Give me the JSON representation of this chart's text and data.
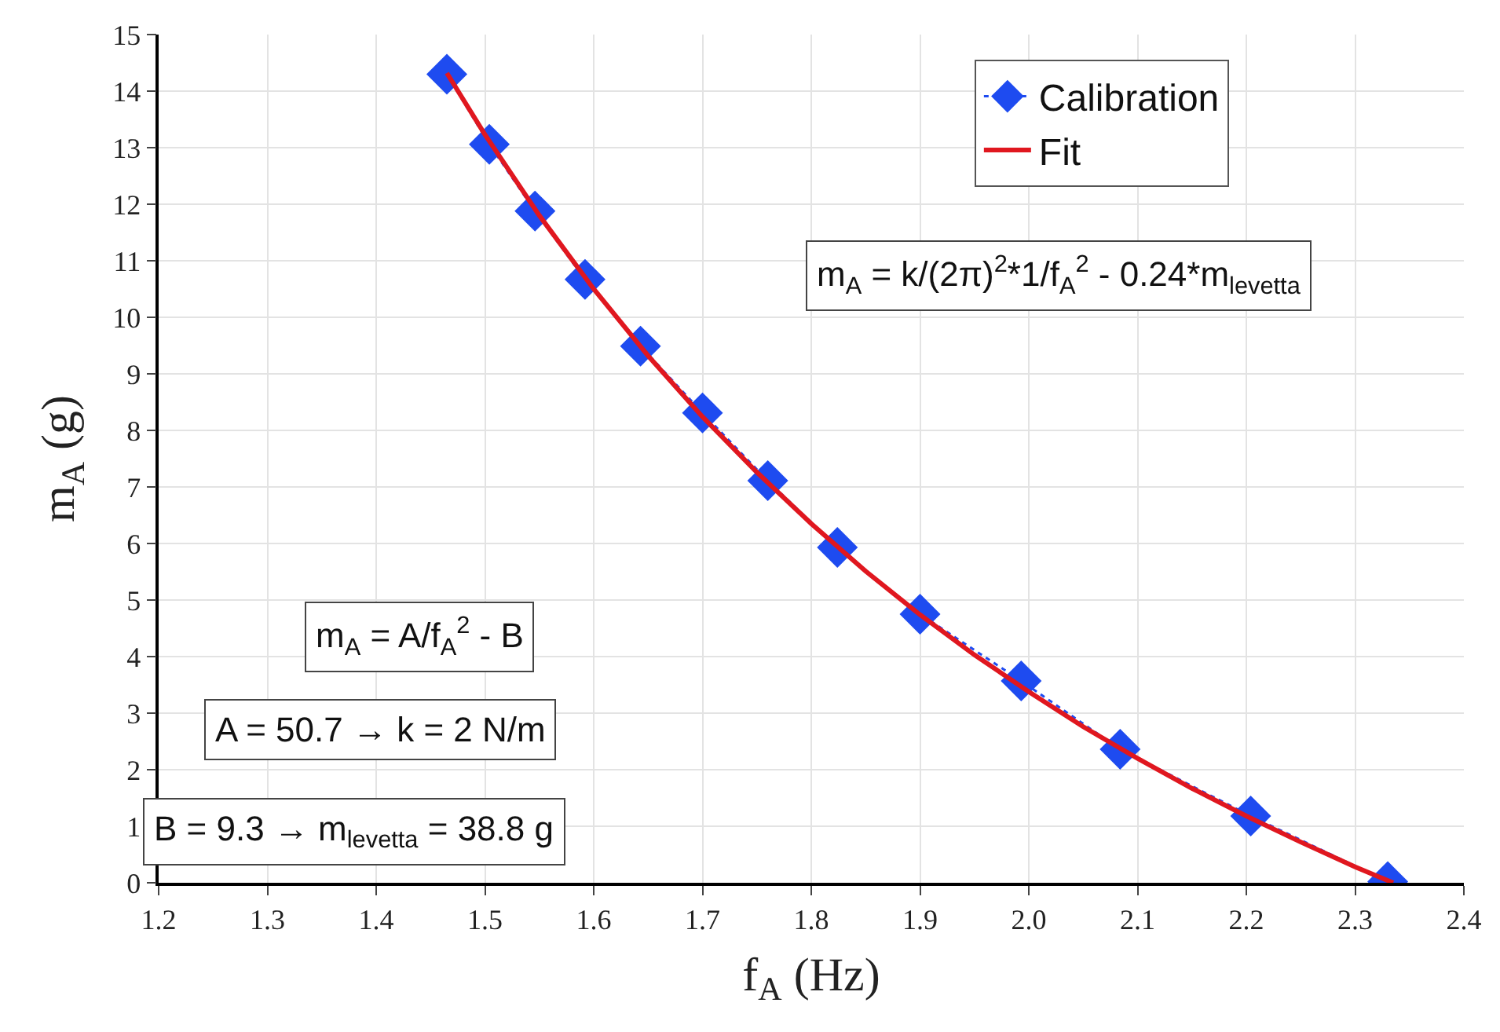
{
  "chart_data": {
    "type": "line",
    "xlabel": "f$_{A}$ (Hz)",
    "ylabel": "m$_{A}$ (g)",
    "series": [
      {
        "name": "Calibration",
        "color": "#1e4bf0",
        "marker": "diamond",
        "line_style": "dotted",
        "x": [
          1.465,
          1.504,
          1.546,
          1.592,
          1.643,
          1.7,
          1.76,
          1.824,
          1.9,
          1.993,
          2.084,
          2.204,
          2.33
        ],
        "values": [
          14.3,
          13.06,
          11.88,
          10.67,
          9.49,
          8.31,
          7.11,
          5.93,
          4.75,
          3.57,
          2.36,
          1.18,
          0.02
        ]
      },
      {
        "name": "Fit",
        "color": "#e0171f",
        "marker": "none",
        "line_style": "solid",
        "x": [
          1.465,
          1.5,
          1.55,
          1.6,
          1.65,
          1.7,
          1.75,
          1.8,
          1.85,
          1.9,
          1.95,
          2.0,
          2.05,
          2.1,
          2.15,
          2.2,
          2.25,
          2.3,
          2.335
        ],
        "values": [
          14.32,
          13.23,
          11.8,
          10.5,
          9.32,
          8.24,
          7.26,
          6.35,
          5.51,
          4.74,
          4.03,
          3.38,
          2.76,
          2.2,
          1.67,
          1.18,
          0.72,
          0.28,
          0.0
        ]
      }
    ],
    "xlim": [
      1.2,
      2.4
    ],
    "xticks": [
      1.2,
      1.3,
      1.4,
      1.5,
      1.6,
      1.7,
      1.8,
      1.9,
      {
        "value": 2.0,
        "label": "2.0"
      },
      2.1,
      2.2,
      2.3,
      2.4
    ],
    "ylim": [
      0,
      15
    ],
    "yticks": [
      0,
      1,
      2,
      3,
      4,
      5,
      6,
      7,
      8,
      9,
      10,
      11,
      12,
      13,
      14,
      15
    ],
    "grid": true,
    "legend": "top right",
    "annotations": [
      "m$_{A}$ = k/(2π)$^{2}$*1/f$_{A}$$^{2}$ - 0.24*m$_{levetta}$",
      "m$_{A}$ = A/f$_{A}$$^{2}$ - B",
      "A = 50.7 → k = 2 N/m",
      "B = 9.3 → m$_{levetta}$ = 38.8 g"
    ]
  }
}
